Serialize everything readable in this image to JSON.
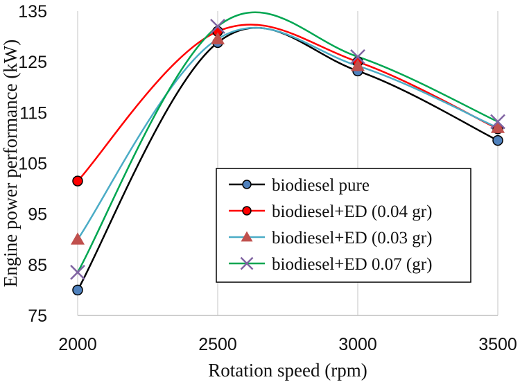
{
  "chart_data": {
    "type": "line",
    "title": "",
    "xlabel": "Rotation speed (rpm)",
    "ylabel": "Engine power performance (kW)",
    "x": [
      2000,
      2500,
      3000,
      3500
    ],
    "xticks": [
      "2000",
      "2500",
      "3000",
      "3500"
    ],
    "yticks": [
      "75",
      "85",
      "95",
      "105",
      "115",
      "125",
      "135"
    ],
    "xlim": [
      2000,
      3500
    ],
    "ylim": [
      75,
      135
    ],
    "grid": "vertical",
    "legend_position": "center-right",
    "series": [
      {
        "name": "biodiesel pure",
        "values": [
          80,
          128.8,
          123.2,
          109.5
        ],
        "color": "#000000",
        "marker": "circle",
        "marker_color": "#4f81bd"
      },
      {
        "name": "biodiesel+ED (0.04 gr)",
        "values": [
          101.5,
          131,
          125,
          111.8
        ],
        "color": "#ff0000",
        "marker": "circle",
        "marker_color": "#ff0000"
      },
      {
        "name": "biodiesel+ED (0.03 gr)",
        "values": [
          90,
          129.5,
          124.2,
          112
        ],
        "color": "#4bacc6",
        "marker": "triangle",
        "marker_color": "#c0504d"
      },
      {
        "name": "biodiesel+ED 0.07 (gr)",
        "values": [
          83.5,
          132,
          126,
          113.2
        ],
        "color": "#00a651",
        "marker": "x",
        "marker_color": "#8064a2"
      }
    ]
  }
}
